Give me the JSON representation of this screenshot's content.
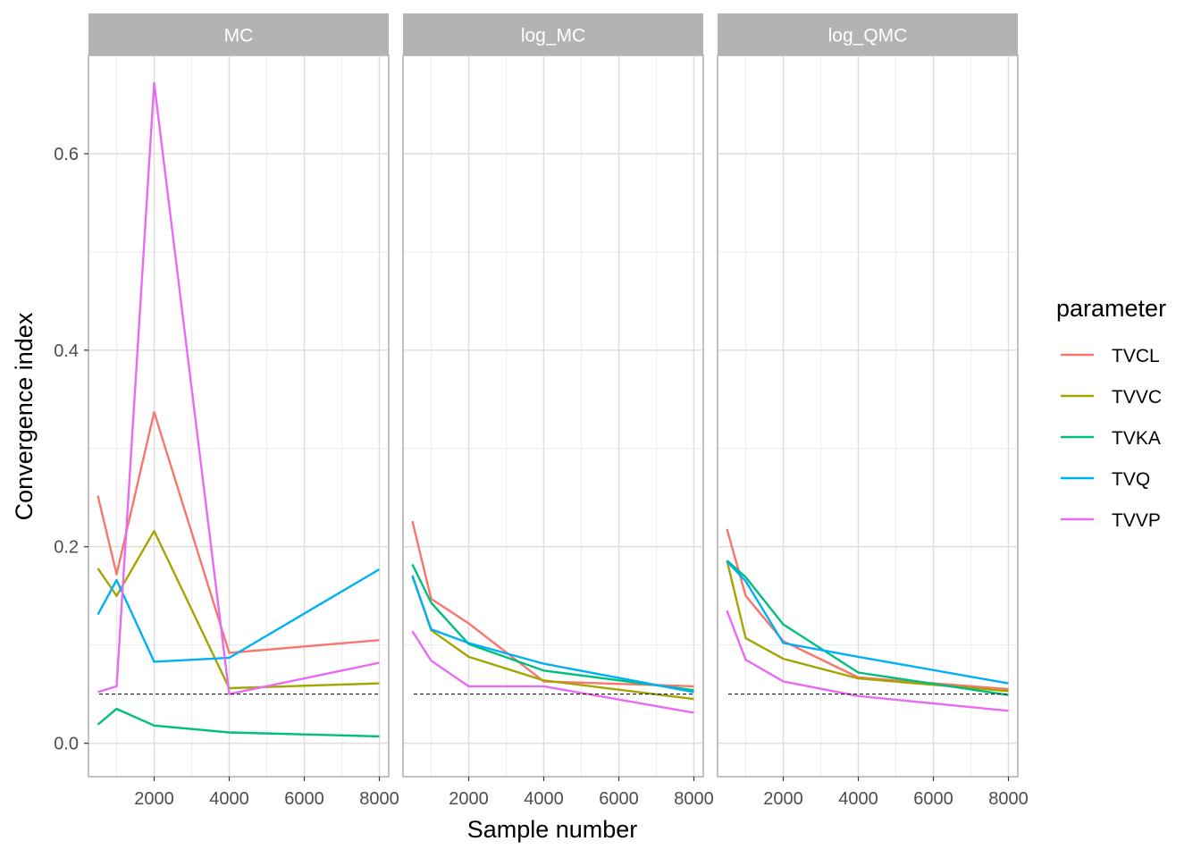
{
  "chart_data": {
    "type": "line",
    "xlabel": "Sample number",
    "ylabel": "Convergence index",
    "xlim": [
      250,
      8250
    ],
    "ylim": [
      -0.034,
      0.7
    ],
    "x_ticks": [
      2000,
      4000,
      6000,
      8000
    ],
    "y_ticks": [
      0.0,
      0.2,
      0.4,
      0.6
    ],
    "y_tick_labels": [
      "0.0",
      "0.2",
      "0.4",
      "0.6"
    ],
    "grid": true,
    "reference_line": {
      "y": 0.05,
      "style": "dashed",
      "color": "#000000"
    },
    "legend": {
      "title": "parameter",
      "position": "right",
      "entries": [
        "TVCL",
        "TVVC",
        "TVKA",
        "TVQ",
        "TVVP"
      ]
    },
    "colors": {
      "TVCL": "#F8766D",
      "TVVC": "#A3A500",
      "TVKA": "#00BF7D",
      "TVQ": "#00B0F6",
      "TVVP": "#E76BF3"
    },
    "x": [
      500,
      1000,
      2000,
      4000,
      8000
    ],
    "panels": [
      {
        "title": "MC",
        "series": [
          {
            "name": "TVCL",
            "values": [
              0.252,
              0.172,
              0.337,
              0.092,
              0.105
            ]
          },
          {
            "name": "TVVC",
            "values": [
              0.178,
              0.15,
              0.216,
              0.056,
              0.061
            ]
          },
          {
            "name": "TVKA",
            "values": [
              0.019,
              0.035,
              0.018,
              0.011,
              0.007
            ]
          },
          {
            "name": "TVQ",
            "values": [
              0.131,
              0.166,
              0.083,
              0.087,
              0.177
            ]
          },
          {
            "name": "TVVP",
            "values": [
              0.052,
              0.058,
              0.672,
              0.05,
              0.082
            ]
          }
        ]
      },
      {
        "title": "log_MC",
        "series": [
          {
            "name": "TVCL",
            "values": [
              0.226,
              0.147,
              0.122,
              0.063,
              0.058
            ]
          },
          {
            "name": "TVVC",
            "values": [
              0.171,
              0.115,
              0.088,
              0.064,
              0.045
            ]
          },
          {
            "name": "TVKA",
            "values": [
              0.182,
              0.143,
              0.101,
              0.074,
              0.054
            ]
          },
          {
            "name": "TVQ",
            "values": [
              0.17,
              0.116,
              0.102,
              0.081,
              0.052
            ]
          },
          {
            "name": "TVVP",
            "values": [
              0.114,
              0.084,
              0.058,
              0.058,
              0.031
            ]
          }
        ]
      },
      {
        "title": "log_QMC",
        "series": [
          {
            "name": "TVCL",
            "values": [
              0.218,
              0.15,
              0.104,
              0.067,
              0.055
            ]
          },
          {
            "name": "TVVC",
            "values": [
              0.186,
              0.107,
              0.086,
              0.066,
              0.053
            ]
          },
          {
            "name": "TVKA",
            "values": [
              0.186,
              0.169,
              0.121,
              0.072,
              0.049
            ]
          },
          {
            "name": "TVQ",
            "values": [
              0.185,
              0.165,
              0.102,
              0.088,
              0.061
            ]
          },
          {
            "name": "TVVP",
            "values": [
              0.135,
              0.085,
              0.063,
              0.048,
              0.033
            ]
          }
        ]
      }
    ]
  }
}
